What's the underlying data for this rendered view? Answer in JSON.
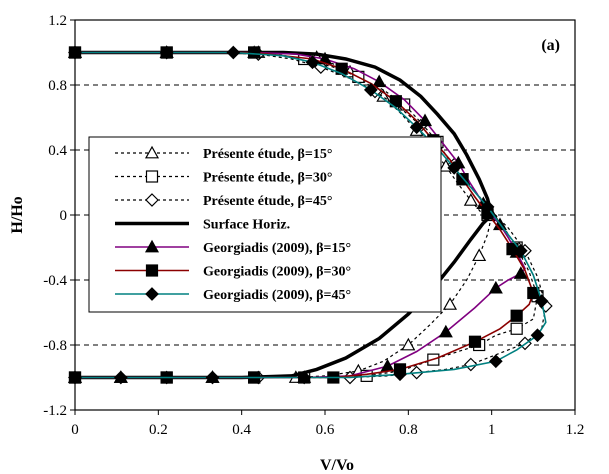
{
  "chart_data": {
    "type": "line",
    "panel_label": "(a)",
    "xlabel": "V/Vo",
    "ylabel": "H/Ho",
    "xlim": [
      0,
      1.2
    ],
    "ylim": [
      -1.2,
      1.2
    ],
    "xticks": [
      "0",
      "0.2",
      "0.4",
      "0.6",
      "0.8",
      "1",
      "1.2"
    ],
    "yticks": [
      "1.2",
      "0.8",
      "0.4",
      "0",
      "-0.4",
      "-0.8",
      "-1.2"
    ],
    "grid": "horizontal dashed",
    "legend_position": "center-left",
    "series": [
      {
        "name": "Présente étude, β=15°",
        "style": "dotted",
        "color": "#000000",
        "marker": "triangle-open",
        "x": [
          0,
          0.11,
          0.22,
          0.33,
          0.44,
          0.53,
          0.58,
          0.62,
          0.66,
          0.7,
          0.74,
          0.78,
          0.82,
          0.86,
          0.89,
          0.92,
          0.95,
          0.98,
          1.0,
          0.99,
          0.97,
          0.94,
          0.9,
          0.85,
          0.8,
          0.74,
          0.68,
          0.6,
          0.53,
          0.44,
          0.33,
          0.22,
          0.11,
          0
        ],
        "y": [
          1.0,
          1.0,
          1.0,
          1.0,
          1.0,
          1.0,
          0.97,
          0.93,
          0.88,
          0.81,
          0.73,
          0.63,
          0.52,
          0.4,
          0.3,
          0.19,
          0.09,
          0.0,
          0.0,
          -0.12,
          -0.25,
          -0.4,
          -0.55,
          -0.68,
          -0.8,
          -0.9,
          -0.96,
          -0.99,
          -1.0,
          -1.0,
          -1.0,
          -1.0,
          -1.0,
          -1.0
        ]
      },
      {
        "name": "Présente étude, β=30°",
        "style": "dotted",
        "color": "#000000",
        "marker": "square-open",
        "x": [
          0,
          0.11,
          0.22,
          0.33,
          0.43,
          0.48,
          0.55,
          0.62,
          0.68,
          0.74,
          0.79,
          0.83,
          0.87,
          0.9,
          0.93,
          0.96,
          0.99,
          1.03,
          1.06,
          1.09,
          1.11,
          1.1,
          1.06,
          1.01,
          0.97,
          0.92,
          0.86,
          0.78,
          0.7,
          0.62,
          0.55,
          0.48,
          0.43,
          0.33,
          0.22,
          0.11,
          0
        ],
        "y": [
          1.0,
          1.0,
          1.0,
          1.0,
          1.0,
          0.99,
          0.96,
          0.91,
          0.85,
          0.77,
          0.68,
          0.57,
          0.45,
          0.33,
          0.22,
          0.11,
          0.0,
          -0.08,
          -0.2,
          -0.35,
          -0.5,
          -0.64,
          -0.7,
          -0.74,
          -0.8,
          -0.84,
          -0.89,
          -0.96,
          -0.99,
          -1.0,
          -1.0,
          -1.0,
          -1.0,
          -1.0,
          -1.0,
          -1.0,
          -1.0
        ]
      },
      {
        "name": "Présente étude, β=45°",
        "style": "dotted",
        "color": "#000000",
        "marker": "diamond-open",
        "x": [
          0,
          0.11,
          0.22,
          0.33,
          0.44,
          0.52,
          0.59,
          0.66,
          0.72,
          0.78,
          0.83,
          0.87,
          0.91,
          0.95,
          0.99,
          1.04,
          1.08,
          1.11,
          1.13,
          1.12,
          1.08,
          1.01,
          0.95,
          0.89,
          0.82,
          0.75,
          0.66,
          0.55,
          0.44,
          0.33,
          0.22,
          0.11,
          0
        ],
        "y": [
          1.0,
          1.0,
          1.0,
          1.0,
          0.99,
          0.96,
          0.91,
          0.84,
          0.76,
          0.66,
          0.55,
          0.43,
          0.31,
          0.18,
          0.05,
          -0.08,
          -0.22,
          -0.38,
          -0.56,
          -0.7,
          -0.79,
          -0.86,
          -0.92,
          -0.95,
          -0.97,
          -0.99,
          -1.0,
          -1.0,
          -1.0,
          -1.0,
          -1.0,
          -1.0,
          -1.0
        ]
      },
      {
        "name": "Surface Horiz.",
        "style": "solid-thick",
        "color": "#000000",
        "marker": "none",
        "x": [
          0,
          0.2,
          0.4,
          0.5,
          0.58,
          0.65,
          0.72,
          0.78,
          0.83,
          0.87,
          0.91,
          0.94,
          0.97,
          0.99,
          1.0,
          0.98,
          0.95,
          0.91,
          0.86,
          0.8,
          0.73,
          0.65,
          0.58,
          0.52,
          0.4,
          0.2,
          0
        ],
        "y": [
          1.0,
          1.0,
          1.0,
          1.0,
          0.99,
          0.96,
          0.91,
          0.83,
          0.73,
          0.62,
          0.5,
          0.37,
          0.22,
          0.1,
          0.0,
          -0.05,
          -0.15,
          -0.29,
          -0.45,
          -0.61,
          -0.76,
          -0.88,
          -0.95,
          -0.99,
          -1.0,
          -1.0,
          -1.0
        ]
      },
      {
        "name": "Georgiadis (2009), β=15°",
        "style": "solid",
        "color": "#800080",
        "marker": "triangle-filled",
        "x": [
          0,
          0.11,
          0.22,
          0.33,
          0.43,
          0.53,
          0.6,
          0.67,
          0.73,
          0.79,
          0.84,
          0.88,
          0.92,
          0.95,
          0.98,
          1.0,
          1.02,
          1.04,
          1.06,
          1.08,
          1.07,
          1.04,
          1.01,
          0.96,
          0.89,
          0.82,
          0.75,
          0.66,
          0.55,
          0.44,
          0.33,
          0.22,
          0.11,
          0
        ],
        "y": [
          1.0,
          1.0,
          1.0,
          1.0,
          1.0,
          0.99,
          0.96,
          0.9,
          0.82,
          0.71,
          0.58,
          0.45,
          0.32,
          0.19,
          0.07,
          0.0,
          -0.06,
          -0.14,
          -0.23,
          -0.33,
          -0.36,
          -0.4,
          -0.45,
          -0.57,
          -0.72,
          -0.84,
          -0.93,
          -0.99,
          -1.0,
          -1.0,
          -1.0,
          -1.0,
          -1.0,
          -1.0
        ]
      },
      {
        "name": "Georgiadis (2009), β=30°",
        "style": "solid",
        "color": "#8B0000",
        "marker": "square-filled",
        "x": [
          0,
          0.11,
          0.22,
          0.33,
          0.43,
          0.57,
          0.64,
          0.71,
          0.77,
          0.82,
          0.86,
          0.9,
          0.93,
          0.96,
          0.99,
          1.02,
          1.05,
          1.08,
          1.1,
          1.09,
          1.06,
          1.02,
          0.96,
          0.87,
          0.78,
          0.7,
          0.62,
          0.55,
          0.43,
          0.33,
          0.22,
          0.11,
          0
        ],
        "y": [
          1.0,
          1.0,
          1.0,
          1.0,
          1.0,
          0.96,
          0.9,
          0.81,
          0.7,
          0.58,
          0.46,
          0.34,
          0.22,
          0.11,
          0.01,
          -0.09,
          -0.21,
          -0.34,
          -0.48,
          -0.55,
          -0.62,
          -0.7,
          -0.78,
          -0.88,
          -0.95,
          -0.98,
          -1.0,
          -1.0,
          -1.0,
          -1.0,
          -1.0,
          -1.0,
          -1.0
        ]
      },
      {
        "name": "Georgiadis (2009), β=45°",
        "style": "solid",
        "color": "#008080",
        "marker": "diamond-filled",
        "x": [
          0,
          0.11,
          0.22,
          0.33,
          0.38,
          0.5,
          0.57,
          0.64,
          0.71,
          0.77,
          0.82,
          0.87,
          0.91,
          0.95,
          0.99,
          1.03,
          1.07,
          1.1,
          1.12,
          1.13,
          1.11,
          1.06,
          1.01,
          0.91,
          0.78,
          0.66,
          0.55,
          0.44,
          0.33,
          0.22,
          0.11,
          0
        ],
        "y": [
          1.0,
          1.0,
          1.0,
          1.0,
          1.0,
          0.98,
          0.94,
          0.87,
          0.77,
          0.66,
          0.54,
          0.41,
          0.29,
          0.17,
          0.05,
          -0.09,
          -0.22,
          -0.37,
          -0.53,
          -0.66,
          -0.74,
          -0.83,
          -0.9,
          -0.95,
          -0.98,
          -1.0,
          -1.0,
          -1.0,
          -1.0,
          -1.0,
          -1.0,
          -1.0
        ]
      }
    ]
  }
}
